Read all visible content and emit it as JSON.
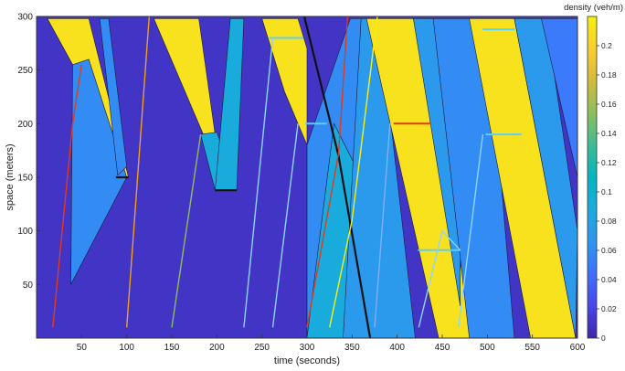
{
  "chart_data": {
    "type": "heatmap",
    "title": "",
    "xlabel": "time (seconds)",
    "ylabel": "space (meters)",
    "xlim": [
      0,
      600
    ],
    "ylim": [
      0,
      300
    ],
    "xticks": [
      50,
      100,
      150,
      200,
      250,
      300,
      350,
      400,
      450,
      500,
      550,
      600
    ],
    "yticks": [
      50,
      100,
      150,
      200,
      250,
      300
    ],
    "colorbar": {
      "label": "density (veh/m)",
      "ticks": [
        0,
        0.02,
        0.04,
        0.06,
        0.08,
        0.1,
        0.12,
        0.14,
        0.16,
        0.18,
        0.2
      ],
      "range": [
        0,
        0.22
      ],
      "colormap": [
        "#3e26a8",
        "#4746eb",
        "#3e70ff",
        "#2e96f0",
        "#1caadf",
        "#00b6c1",
        "#3fbc95",
        "#8dbe5c",
        "#d3bb3c",
        "#fcce2e",
        "#f5f10f"
      ]
    },
    "regions": [
      {
        "density": 0.01,
        "points": [
          [
            0,
            0
          ],
          [
            600,
            0
          ],
          [
            600,
            300
          ],
          [
            0,
            300
          ]
        ]
      },
      {
        "density": 0.21,
        "points": [
          [
            12,
            298
          ],
          [
            58,
            298
          ],
          [
            102,
            150
          ],
          [
            90,
            150
          ],
          [
            40,
            255
          ]
        ]
      },
      {
        "density": 0.06,
        "points": [
          [
            40,
            255
          ],
          [
            58,
            260
          ],
          [
            100,
            150
          ],
          [
            38,
            50
          ]
        ]
      },
      {
        "density": 0.06,
        "points": [
          [
            70,
            298
          ],
          [
            80,
            298
          ],
          [
            100,
            160
          ],
          [
            90,
            152
          ]
        ]
      },
      {
        "density": 0.21,
        "points": [
          [
            130,
            298
          ],
          [
            180,
            298
          ],
          [
            198,
            190
          ],
          [
            185,
            190
          ]
        ]
      },
      {
        "density": 0.09,
        "points": [
          [
            182,
            190
          ],
          [
            200,
            192
          ],
          [
            222,
            138
          ],
          [
            198,
            138
          ]
        ]
      },
      {
        "density": 0.09,
        "points": [
          [
            198,
            138
          ],
          [
            222,
            138
          ],
          [
            230,
            298
          ],
          [
            215,
            298
          ]
        ]
      },
      {
        "density": 0.21,
        "points": [
          [
            250,
            298
          ],
          [
            290,
            298
          ],
          [
            300,
            270
          ],
          [
            300,
            180
          ],
          [
            275,
            230
          ]
        ]
      },
      {
        "density": 0.07,
        "points": [
          [
            300,
            180
          ],
          [
            328,
            180
          ],
          [
            300,
            0
          ]
        ]
      },
      {
        "density": 0.06,
        "points": [
          [
            300,
            0
          ],
          [
            340,
            0
          ],
          [
            378,
            298
          ],
          [
            348,
            298
          ],
          [
            300,
            180
          ]
        ]
      },
      {
        "density": 0.09,
        "points": [
          [
            300,
            0
          ],
          [
            360,
            0
          ],
          [
            390,
            100
          ],
          [
            330,
            200
          ]
        ]
      },
      {
        "density": 0.07,
        "points": [
          [
            340,
            0
          ],
          [
            420,
            0
          ],
          [
            380,
            298
          ],
          [
            360,
            298
          ]
        ]
      },
      {
        "density": 0.21,
        "points": [
          [
            366,
            298
          ],
          [
            418,
            298
          ],
          [
            486,
            0
          ],
          [
            446,
            0
          ]
        ]
      },
      {
        "density": 0.07,
        "points": [
          [
            418,
            298
          ],
          [
            445,
            298
          ],
          [
            470,
            80
          ],
          [
            470,
            30
          ]
        ]
      },
      {
        "density": 0.06,
        "points": [
          [
            440,
            298
          ],
          [
            500,
            298
          ],
          [
            530,
            0
          ],
          [
            480,
            0
          ]
        ]
      },
      {
        "density": 0.21,
        "points": [
          [
            480,
            298
          ],
          [
            530,
            298
          ],
          [
            598,
            0
          ],
          [
            548,
            0
          ]
        ]
      },
      {
        "density": 0.07,
        "points": [
          [
            530,
            298
          ],
          [
            565,
            298
          ],
          [
            600,
            100
          ],
          [
            598,
            0
          ]
        ]
      },
      {
        "density": 0.05,
        "points": [
          [
            560,
            298
          ],
          [
            600,
            298
          ],
          [
            600,
            150
          ]
        ]
      }
    ],
    "trajectories": [
      {
        "color": "#e03a1f",
        "points": [
          [
            18,
            10
          ],
          [
            40,
            200
          ],
          [
            50,
            255
          ]
        ]
      },
      {
        "color": "#f0a020",
        "points": [
          [
            100,
            10
          ],
          [
            125,
            300
          ]
        ]
      },
      {
        "color": "#8dbe5c",
        "points": [
          [
            150,
            10
          ],
          [
            182,
            190
          ]
        ]
      },
      {
        "color": "#8fd3ff",
        "points": [
          [
            230,
            10
          ],
          [
            262,
            280
          ]
        ]
      },
      {
        "color": "#8fd3ff",
        "points": [
          [
            262,
            10
          ],
          [
            290,
            200
          ]
        ]
      },
      {
        "color": "#e03a1f",
        "points": [
          [
            300,
            10
          ],
          [
            335,
            172
          ],
          [
            345,
            300
          ]
        ]
      },
      {
        "color": "#f5f10f",
        "points": [
          [
            325,
            10
          ],
          [
            350,
            110
          ],
          [
            378,
            300
          ]
        ]
      },
      {
        "color": "#8fd3ff",
        "points": [
          [
            424,
            10
          ],
          [
            450,
            100
          ],
          [
            470,
            82
          ]
        ]
      },
      {
        "color": "#8fd3ff",
        "points": [
          [
            468,
            10
          ],
          [
            495,
            190
          ]
        ]
      },
      {
        "color": "#7fb0ff",
        "points": [
          [
            375,
            10
          ],
          [
            392,
            200
          ]
        ]
      }
    ],
    "shockwaves": [
      {
        "points": [
          [
            297,
            300
          ],
          [
            335,
            170
          ]
        ]
      },
      {
        "points": [
          [
            335,
            170
          ],
          [
            370,
            0
          ]
        ]
      },
      {
        "points": [
          [
            88,
            150
          ],
          [
            102,
            150
          ]
        ]
      },
      {
        "points": [
          [
            198,
            138
          ],
          [
            222,
            138
          ]
        ]
      }
    ],
    "stoplines": [
      {
        "color": "#e03a1f",
        "points": [
          [
            396,
            200
          ],
          [
            438,
            200
          ]
        ]
      },
      {
        "color": "#5ad0ff",
        "points": [
          [
            423,
            82
          ],
          [
            470,
            82
          ]
        ]
      },
      {
        "color": "#5ad0ff",
        "points": [
          [
            498,
            190
          ],
          [
            538,
            190
          ]
        ]
      },
      {
        "color": "#5ad0ff",
        "points": [
          [
            495,
            288
          ],
          [
            530,
            288
          ]
        ]
      },
      {
        "color": "#5ad0ff",
        "points": [
          [
            258,
            280
          ],
          [
            296,
            280
          ]
        ]
      },
      {
        "color": "#5ad0ff",
        "points": [
          [
            298,
            200
          ],
          [
            322,
            200
          ]
        ]
      }
    ]
  }
}
